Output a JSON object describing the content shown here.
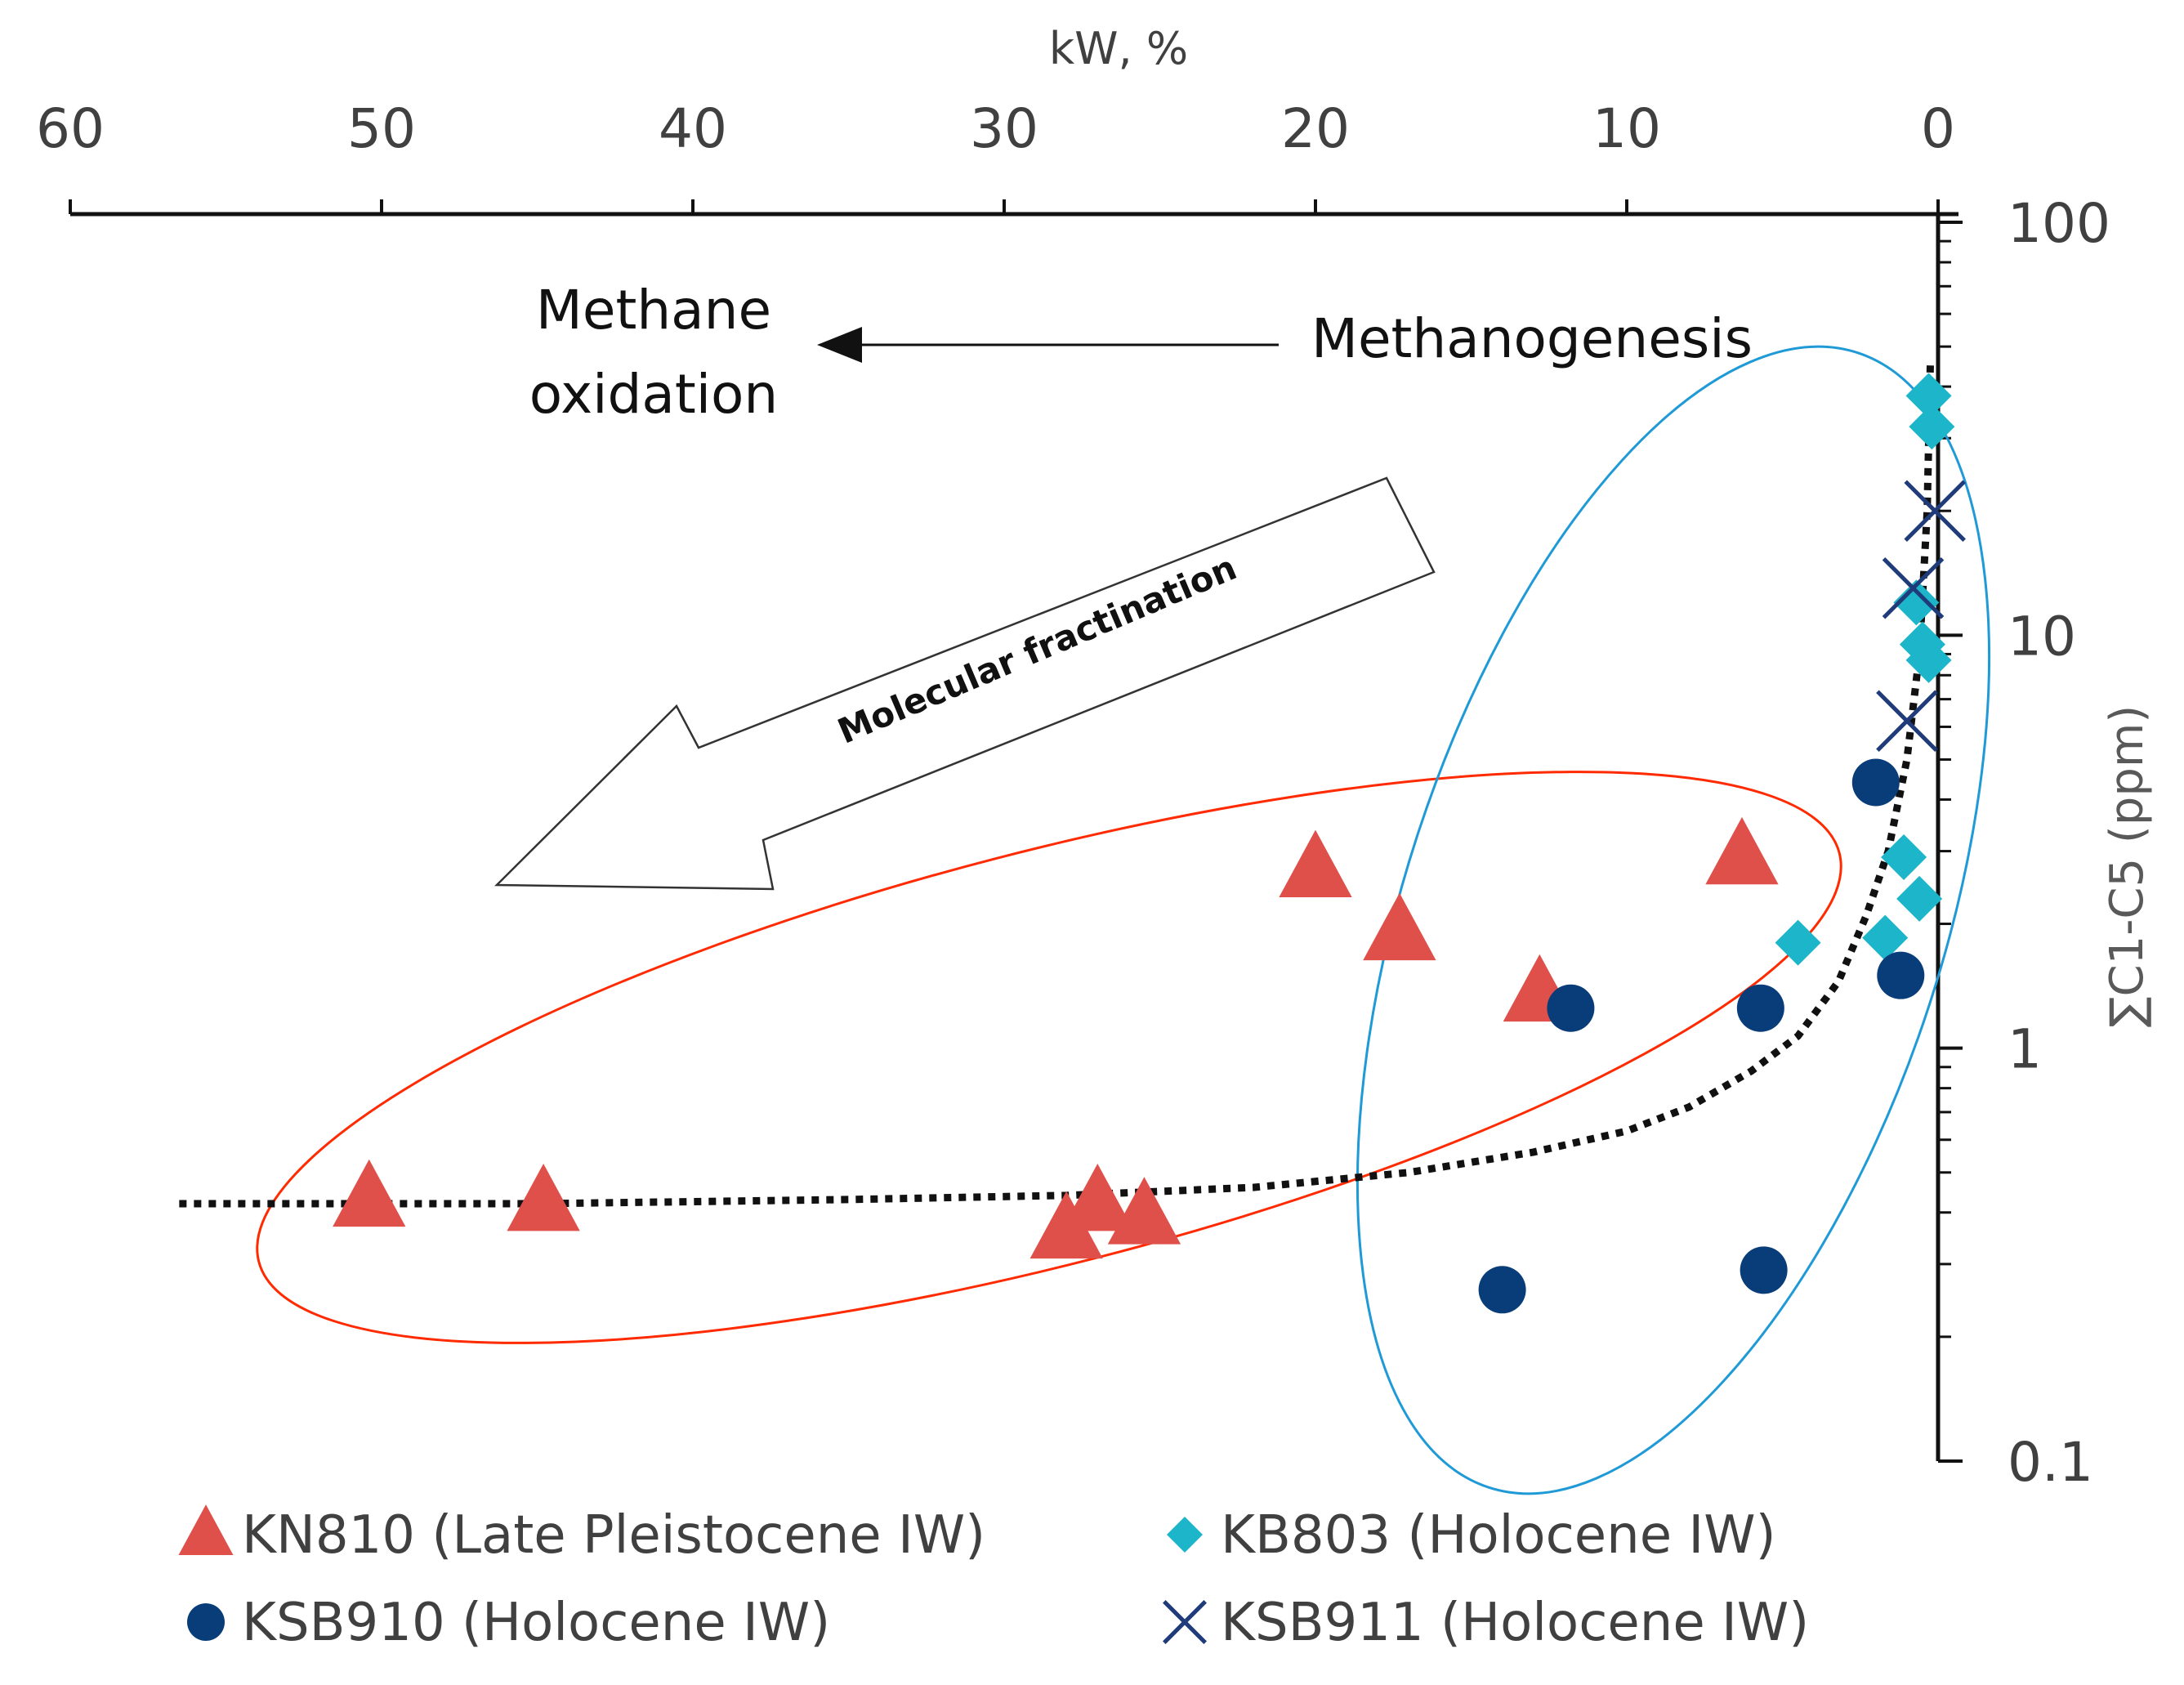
{
  "chart_data": {
    "type": "scatter",
    "xlabel": "kW, %",
    "ylabel": "∑C1-C5 (ppm)",
    "xlim": [
      60,
      0
    ],
    "ylim": [
      0.1,
      100
    ],
    "y_scale": "log",
    "x_axis_position": "top",
    "y_axis_position": "right",
    "x_ticks": [
      "60",
      "50",
      "40",
      "30",
      "20",
      "10",
      "0"
    ],
    "y_ticks": [
      "100",
      "10",
      "1",
      "0.1"
    ],
    "series": [
      {
        "name": "KN810 (Late Pleistocene IW)",
        "marker": "triangle",
        "color": "#e0504a",
        "points": [
          {
            "x": 50.4,
            "y": 0.43
          },
          {
            "x": 44.8,
            "y": 0.42
          },
          {
            "x": 28.0,
            "y": 0.36
          },
          {
            "x": 27.0,
            "y": 0.42
          },
          {
            "x": 25.5,
            "y": 0.39
          },
          {
            "x": 20.0,
            "y": 2.7
          },
          {
            "x": 17.3,
            "y": 1.9
          },
          {
            "x": 12.8,
            "y": 1.35
          },
          {
            "x": 6.3,
            "y": 2.9
          }
        ]
      },
      {
        "name": "KB803 (Holocene IW)",
        "marker": "diamond",
        "color": "#1cb5c9",
        "points": [
          {
            "x": 0.3,
            "y": 38
          },
          {
            "x": 0.2,
            "y": 32
          },
          {
            "x": 0.7,
            "y": 12
          },
          {
            "x": 0.5,
            "y": 9.5
          },
          {
            "x": 0.3,
            "y": 8.7
          },
          {
            "x": 1.1,
            "y": 2.9
          },
          {
            "x": 0.6,
            "y": 2.3
          },
          {
            "x": 4.5,
            "y": 1.8
          },
          {
            "x": 1.7,
            "y": 1.85
          }
        ]
      },
      {
        "name": "KSB910 (Holocene IW)",
        "marker": "circle",
        "color": "#083d7a",
        "points": [
          {
            "x": 2.0,
            "y": 4.4
          },
          {
            "x": 1.2,
            "y": 1.5
          },
          {
            "x": 5.7,
            "y": 1.25
          },
          {
            "x": 11.8,
            "y": 1.25
          },
          {
            "x": 5.6,
            "y": 0.29
          },
          {
            "x": 14.0,
            "y": 0.26
          }
        ]
      },
      {
        "name": "KSB911 (Holocene IW)",
        "marker": "x",
        "color": "#1f3b7a",
        "points": [
          {
            "x": 0.1,
            "y": 20
          },
          {
            "x": 0.8,
            "y": 13
          },
          {
            "x": 1.0,
            "y": 6.2
          }
        ]
      }
    ],
    "trendline": {
      "style": "dotted",
      "color": "#111111",
      "points": [
        {
          "x": 56.5,
          "y": 0.42
        },
        {
          "x": 45,
          "y": 0.42
        },
        {
          "x": 35,
          "y": 0.43
        },
        {
          "x": 28,
          "y": 0.44
        },
        {
          "x": 22,
          "y": 0.46
        },
        {
          "x": 17,
          "y": 0.5
        },
        {
          "x": 13,
          "y": 0.56
        },
        {
          "x": 10,
          "y": 0.63
        },
        {
          "x": 8,
          "y": 0.72
        },
        {
          "x": 6,
          "y": 0.88
        },
        {
          "x": 4.5,
          "y": 1.07
        },
        {
          "x": 3.2,
          "y": 1.45
        },
        {
          "x": 2.3,
          "y": 2.1
        },
        {
          "x": 1.6,
          "y": 3.0
        },
        {
          "x": 1.0,
          "y": 5.0
        },
        {
          "x": 0.6,
          "y": 9.0
        },
        {
          "x": 0.35,
          "y": 20
        },
        {
          "x": 0.25,
          "y": 45
        }
      ]
    },
    "annotations": {
      "methane_oxidation_line1": "Methane",
      "methane_oxidation_line2": "oxidation",
      "methanogenesis": "Methanogenesis",
      "molecular_fractination": "Molecular fractination"
    },
    "legend_placement": "bottom",
    "grid": false
  }
}
